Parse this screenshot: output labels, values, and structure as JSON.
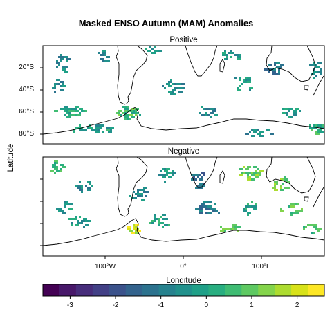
{
  "title": "Masked ENSO Autumn (MAM) Anomalies",
  "panels": [
    {
      "title": "Positive"
    },
    {
      "title": "Negative"
    }
  ],
  "axes": {
    "ylabel": "Latitude",
    "xlabel": "Longitude",
    "lat_ticks": [
      "20°S",
      "40°S",
      "60°S",
      "80°S"
    ],
    "lat_values": [
      -20,
      -40,
      -60,
      -80
    ],
    "lon_ticks": [
      "100°W",
      "0°",
      "100°E"
    ],
    "lon_values": [
      -100,
      0,
      100
    ],
    "lon_range": [
      -180,
      180
    ],
    "lat_range": [
      -89,
      0
    ]
  },
  "colorbar": {
    "ticks": [
      "-3",
      "-2",
      "-1",
      "0",
      "1",
      "2"
    ],
    "tick_values": [
      -3,
      -2,
      -1,
      0,
      1,
      2
    ],
    "range": [
      -3.6,
      2.6
    ],
    "palette": [
      "#440154",
      "#48186a",
      "#472d7b",
      "#424086",
      "#3b528b",
      "#33638d",
      "#2c728e",
      "#26828e",
      "#21918c",
      "#1fa088",
      "#28ae80",
      "#3fbc73",
      "#5ec962",
      "#84d44b",
      "#addc30",
      "#d8e219",
      "#fde725"
    ]
  }
}
